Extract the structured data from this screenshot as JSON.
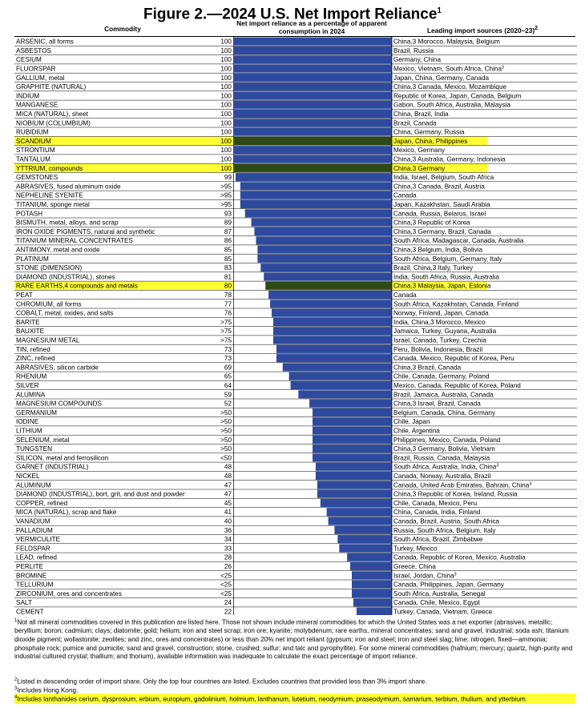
{
  "figure": {
    "title": "Figure 2.—2024 U.S. Net Import Reliance",
    "title_sup": "1",
    "col_commodity": "Commodity",
    "col_reliance": "Net import reliance as a percentage of apparent consumption in 2024",
    "col_sources": "Leading import sources (2020–23)",
    "col_sources_sup": "2"
  },
  "colors": {
    "bar": "#2e4a9e",
    "highlight_bar": "#2e4a14",
    "highlight_bg": "#ffff33",
    "grid": "#000000"
  },
  "chart_data": {
    "type": "bar",
    "orientation": "horizontal",
    "xlim": [
      0,
      100
    ],
    "grid": true,
    "rows": [
      {
        "name": "ARSENIC, all forms",
        "label": "100",
        "value": 100,
        "sources": "China,3 Morocco, Malaysia, Belgium",
        "hl": false
      },
      {
        "name": "ASBESTOS",
        "label": "100",
        "value": 100,
        "sources": "Brazil, Russia",
        "hl": false
      },
      {
        "name": "CESIUM",
        "label": "100",
        "value": 100,
        "sources": "Germany, China",
        "hl": false
      },
      {
        "name": "FLUORSPAR",
        "label": "100",
        "value": 100,
        "sources": "Mexico, Vietnam, South Africa, China3",
        "hl": false
      },
      {
        "name": "GALLIUM, metal",
        "label": "100",
        "value": 100,
        "sources": "Japan, China, Germany, Canada",
        "hl": false
      },
      {
        "name": "GRAPHITE (NATURAL)",
        "label": "100",
        "value": 100,
        "sources": "China,3 Canada, Mexico, Mozambique",
        "hl": false
      },
      {
        "name": "INDIUM",
        "label": "100",
        "value": 100,
        "sources": "Republic of Korea, Japan, Canada, Belgium",
        "hl": false
      },
      {
        "name": "MANGANESE",
        "label": "100",
        "value": 100,
        "sources": "Gabon, South Africa, Australia, Malaysia",
        "hl": false
      },
      {
        "name": "MICA (NATURAL), sheet",
        "label": "100",
        "value": 100,
        "sources": "China, Brazil, India",
        "hl": false
      },
      {
        "name": "NIOBIUM (COLUMBIUM)",
        "label": "100",
        "value": 100,
        "sources": "Brazil, Canada",
        "hl": false
      },
      {
        "name": "RUBIDIUM",
        "label": "100",
        "value": 100,
        "sources": "China, Germany, Russia",
        "hl": false
      },
      {
        "name": "SCANDIUM",
        "label": "100",
        "value": 100,
        "sources": "Japan, China, Philippines",
        "hl": true
      },
      {
        "name": "STRONTIUM",
        "label": "100",
        "value": 100,
        "sources": "Mexico, Germany",
        "hl": false
      },
      {
        "name": "TANTALUM",
        "label": "100",
        "value": 100,
        "sources": "China,3 Australia, Germany, Indonesia",
        "hl": false
      },
      {
        "name": "YTTRIUM, compounds",
        "label": "100",
        "value": 100,
        "sources": "China,3 Germany",
        "hl": true
      },
      {
        "name": "GEMSTONES",
        "label": "99",
        "value": 99,
        "sources": "India, Israel, Belgium, South Africa",
        "hl": false
      },
      {
        "name": "ABRASIVES, fused aluminum oxide",
        "label": ">95",
        "value": 96,
        "sources": "China,3 Canada, Brazil, Austria",
        "hl": false
      },
      {
        "name": "NEPHELINE SYENITE",
        "label": ">95",
        "value": 96,
        "sources": "Canada",
        "hl": false
      },
      {
        "name": "TITANIUM, sponge metal",
        "label": ">95",
        "value": 96,
        "sources": "Japan, Kazakhstan, Saudi Arabia",
        "hl": false
      },
      {
        "name": "POTASH",
        "label": "93",
        "value": 93,
        "sources": "Canada, Russia, Belarus, Israel",
        "hl": false
      },
      {
        "name": "BISMUTH, metal, alloys, and scrap",
        "label": "89",
        "value": 89,
        "sources": "China,3 Republic of Korea",
        "hl": false
      },
      {
        "name": "IRON OXIDE PIGMENTS, natural and synthetic",
        "label": "87",
        "value": 87,
        "sources": "China,3 Germany, Brazil, Canada",
        "hl": false
      },
      {
        "name": "TITANIUM MINERAL CONCENTRATES",
        "label": "86",
        "value": 86,
        "sources": "South Africa, Madagascar, Canada, Australia",
        "hl": false
      },
      {
        "name": "ANTIMONY, metal and oxide",
        "label": "85",
        "value": 85,
        "sources": "China,3 Belgium, India, Bolivia",
        "hl": false
      },
      {
        "name": "PLATINUM",
        "label": "85",
        "value": 85,
        "sources": "South Africa, Belgium, Germany, Italy",
        "hl": false
      },
      {
        "name": "STONE (DIMENSION)",
        "label": "83",
        "value": 83,
        "sources": "Brazil, China,3 Italy, Turkey",
        "hl": false
      },
      {
        "name": "DIAMOND (INDUSTRIAL), stones",
        "label": "81",
        "value": 81,
        "sources": "India, South Africa, Russia, Australia",
        "hl": false
      },
      {
        "name": "RARE EARTHS,4 compounds and metals",
        "label": "80",
        "value": 80,
        "sources": "China,3 Malaysia, Japan, Estonia",
        "hl": true
      },
      {
        "name": "PEAT",
        "label": "78",
        "value": 78,
        "sources": "Canada",
        "hl": false
      },
      {
        "name": "CHROMIUM, all forms",
        "label": "77",
        "value": 77,
        "sources": "South Africa, Kazakhstan, Canada, Finland",
        "hl": false
      },
      {
        "name": "COBALT, metal, oxides, and salts",
        "label": "76",
        "value": 76,
        "sources": "Norway, Finland, Japan, Canada",
        "hl": false
      },
      {
        "name": "BARITE",
        "label": ">75",
        "value": 75,
        "sources": "India, China,3 Morocco, Mexico",
        "hl": false
      },
      {
        "name": "BAUXITE",
        "label": ">75",
        "value": 75,
        "sources": "Jamaica, Turkey, Guyana, Australia",
        "hl": false
      },
      {
        "name": "MAGNESIUM METAL",
        "label": ">75",
        "value": 75,
        "sources": "Israel, Canada, Turkey, Czechia",
        "hl": false
      },
      {
        "name": "TIN, refined",
        "label": "73",
        "value": 73,
        "sources": "Peru, Bolivia, Indonesia, Brazil",
        "hl": false
      },
      {
        "name": "ZINC, refined",
        "label": "73",
        "value": 73,
        "sources": "Canada, Mexico, Republic of Korea, Peru",
        "hl": false
      },
      {
        "name": "ABRASIVES, silicon carbide",
        "label": "69",
        "value": 69,
        "sources": "China,3 Brazil, Canada",
        "hl": false
      },
      {
        "name": "RHENIUM",
        "label": "65",
        "value": 65,
        "sources": "Chile, Canada, Germany, Poland",
        "hl": false
      },
      {
        "name": "SILVER",
        "label": "64",
        "value": 64,
        "sources": "Mexico, Canada, Republic of Korea, Poland",
        "hl": false
      },
      {
        "name": "ALUMINA",
        "label": "59",
        "value": 59,
        "sources": "Brazil, Jamaica, Australia, Canada",
        "hl": false
      },
      {
        "name": "MAGNESIUM COMPOUNDS",
        "label": "52",
        "value": 52,
        "sources": "China,3 Israel, Brazil, Canada",
        "hl": false
      },
      {
        "name": "GERMANIUM",
        "label": ">50",
        "value": 50,
        "sources": "Belgium, Canada, China, Germany",
        "hl": false
      },
      {
        "name": "IODINE",
        "label": ">50",
        "value": 50,
        "sources": "Chile, Japan",
        "hl": false
      },
      {
        "name": "LITHIUM",
        "label": ">50",
        "value": 50,
        "sources": "Chile, Argentina",
        "hl": false
      },
      {
        "name": "SELENIUM, metal",
        "label": ">50",
        "value": 50,
        "sources": "Philippines, Mexico, Canada, Poland",
        "hl": false
      },
      {
        "name": "TUNGSTEN",
        "label": ">50",
        "value": 50,
        "sources": "China,3 Germany, Bolivia, Vietnam",
        "hl": false
      },
      {
        "name": "SILICON, metal and ferrosilicon",
        "label": "<50",
        "value": 50,
        "sources": "Brazil, Russia, Canada, Malaysia",
        "hl": false
      },
      {
        "name": "GARNET (INDUSTRIAL)",
        "label": "48",
        "value": 48,
        "sources": "South Africa, Australia, India, China3",
        "hl": false
      },
      {
        "name": "NICKEL",
        "label": "48",
        "value": 48,
        "sources": "Canada, Norway, Australia, Brazil",
        "hl": false
      },
      {
        "name": "ALUMINUM",
        "label": "47",
        "value": 47,
        "sources": "Canada, United Arab Emirates, Bahrain, China3",
        "hl": false
      },
      {
        "name": "DIAMOND (INDUSTRIAL), bort, grit, and dust and powder",
        "label": "47",
        "value": 47,
        "sources": "China,3 Republic of Korea, Ireland, Russia",
        "hl": false
      },
      {
        "name": "COPPER, refined",
        "label": "45",
        "value": 45,
        "sources": "Chile, Canada, Mexico, Peru",
        "hl": false
      },
      {
        "name": "MICA (NATURAL), scrap and flake",
        "label": "41",
        "value": 41,
        "sources": "China, Canada, India, Finland",
        "hl": false
      },
      {
        "name": "VANADIUM",
        "label": "40",
        "value": 40,
        "sources": "Canada, Brazil, Austria, South Africa",
        "hl": false
      },
      {
        "name": "PALLADIUM",
        "label": "36",
        "value": 36,
        "sources": "Russia, South Africa, Belgium, Italy",
        "hl": false
      },
      {
        "name": "VERMICULITE",
        "label": "34",
        "value": 34,
        "sources": "South Africa, Brazil, Zimbabwe",
        "hl": false
      },
      {
        "name": "FELDSPAR",
        "label": "33",
        "value": 33,
        "sources": "Turkey, Mexico",
        "hl": false
      },
      {
        "name": "LEAD, refined",
        "label": "28",
        "value": 28,
        "sources": "Canada, Republic of Korea, Mexico, Australia",
        "hl": false
      },
      {
        "name": "PERLITE",
        "label": "26",
        "value": 26,
        "sources": "Greece, China",
        "hl": false
      },
      {
        "name": "BROMINE",
        "label": "<25",
        "value": 25,
        "sources": "Israel, Jordan, China3",
        "hl": false
      },
      {
        "name": "TELLURIUM",
        "label": "<25",
        "value": 25,
        "sources": "Canada, Philippines, Japan, Germany",
        "hl": false
      },
      {
        "name": "ZIRCONIUM, ores and concentrates",
        "label": "<25",
        "value": 25,
        "sources": "South Africa, Australia, Senegal",
        "hl": false
      },
      {
        "name": "SALT",
        "label": "24",
        "value": 24,
        "sources": "Canada, Chile, Mexico, Egypt",
        "hl": false
      },
      {
        "name": "CEMENT",
        "label": "22",
        "value": 22,
        "sources": "Turkey, Canada, Vietnam, Greece",
        "hl": false
      }
    ]
  },
  "footnotes": {
    "fn1_mark": "1",
    "fn1": "Not all mineral commodities covered in this publication are listed here. Those not shown include mineral commodities for which the United States was a net exporter (abrasives, metallic; beryllium; boron; cadmium; clays; diatomite; gold; helium; iron and steel scrap; iron ore; kyanite; molybdenum; rare earths, mineral concentrates; sand and gravel, industrial; soda ash; titanium dioxide pigment; wollastonite; zeolites; and zinc, ores and concentrates) or less than 20% net import reliant (gypsum; iron and steel; iron and steel slag; lime; nitrogen, fixed—ammonia; phosphate rock; pumice and pumicite; sand and gravel, construction; stone, crushed; sulfur; and talc and pyrophyllite). For some mineral commodities (hafnium; mercury; quartz, high-purity and industrial cultured crystal; thallium; and thorium), available information was inadequate to calculate the exact percentage of import reliance.",
    "fn2_mark": "2",
    "fn2": "Listed in descending order of import share. Only the top four countries are listed. Excludes countries that provided less than 3% import share.",
    "fn3_mark": "3",
    "fn3": "Includes Hong Kong.",
    "fn4_mark": "4",
    "fn4": "Includes lanthanides cerium, dysprosium, erbium, europium, gadolinium, holmium, lanthanum, lutetium, neodymium, praseodymium, samarium, terbium, thulium, and ytterbium."
  }
}
